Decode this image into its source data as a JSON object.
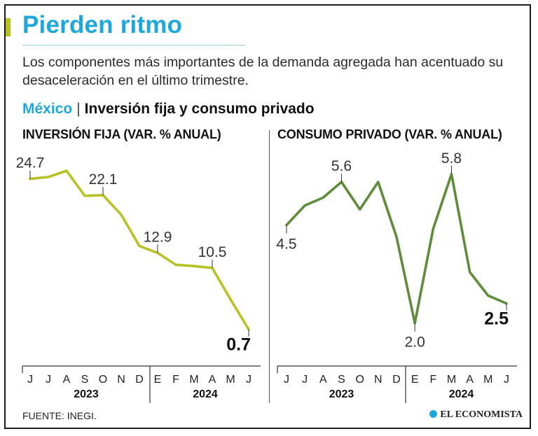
{
  "header": {
    "title": "Pierden ritmo",
    "subtitle": "Los componentes más importantes de la demanda agregada han acentuado su desaceleración en el último trimestre.",
    "country": "México",
    "section": "Inversión fija y consumo privado"
  },
  "footer": {
    "source": "FUENTE: INEGI.",
    "brand": "EL ECONOMISTA"
  },
  "colors": {
    "inversion_line": "#b8c125",
    "consumo_line": "#5f8c3a",
    "accent": "#1ea7dc"
  },
  "chart_data": [
    {
      "type": "line",
      "title": "INVERSIÓN FIJA (VAR. % ANUAL)",
      "categories": [
        "J",
        "J",
        "A",
        "S",
        "O",
        "N",
        "D",
        "E",
        "F",
        "M",
        "A",
        "M",
        "J"
      ],
      "year_labels": [
        "2023",
        "2024"
      ],
      "series": [
        {
          "values": [
            24.7,
            25.0,
            26.0,
            22.0,
            22.1,
            19.0,
            14.0,
            12.9,
            11.0,
            10.8,
            10.5,
            5.5,
            0.7
          ]
        }
      ],
      "labels": [
        {
          "index": 0,
          "text": "24.7"
        },
        {
          "index": 4,
          "text": "22.1"
        },
        {
          "index": 7,
          "text": "12.9"
        },
        {
          "index": 10,
          "text": "10.5"
        },
        {
          "index": 12,
          "text": "0.7",
          "emphasis": true
        }
      ],
      "ylim": [
        0,
        27
      ]
    },
    {
      "type": "line",
      "title": "CONSUMO PRIVADO (VAR. % ANUAL)",
      "categories": [
        "J",
        "J",
        "A",
        "S",
        "O",
        "N",
        "D",
        "E",
        "F",
        "M",
        "A",
        "M",
        "J"
      ],
      "year_labels": [
        "2023",
        "2024"
      ],
      "series": [
        {
          "values": [
            4.5,
            5.0,
            5.2,
            5.6,
            4.9,
            5.6,
            4.2,
            2.0,
            4.4,
            5.8,
            3.3,
            2.7,
            2.5
          ]
        }
      ],
      "labels": [
        {
          "index": 0,
          "text": "4.5"
        },
        {
          "index": 3,
          "text": "5.6"
        },
        {
          "index": 7,
          "text": "2.0"
        },
        {
          "index": 9,
          "text": "5.8"
        },
        {
          "index": 12,
          "text": "2.5",
          "emphasis": true
        }
      ],
      "ylim": [
        1.6,
        6.1
      ]
    }
  ]
}
